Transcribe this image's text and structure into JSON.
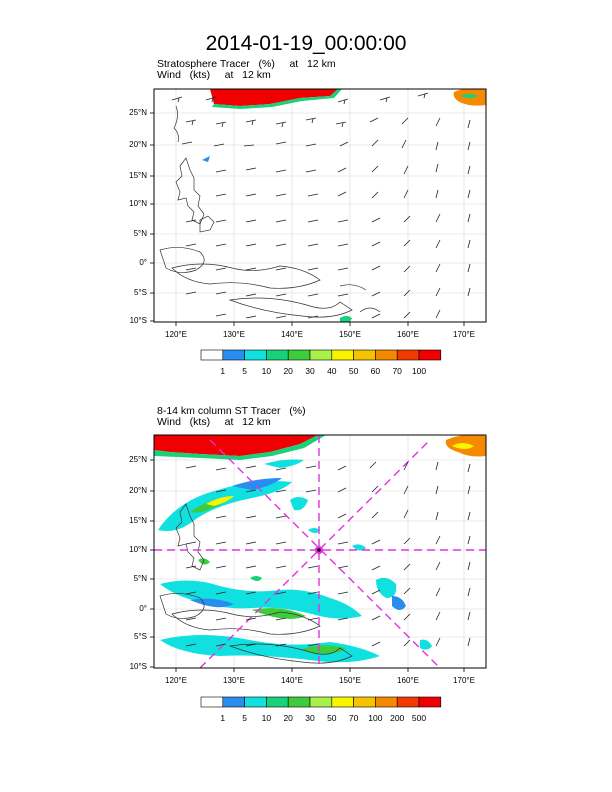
{
  "title": "2014-01-19_00:00:00",
  "panels": [
    {
      "subtitle_line1": "Stratosphere Tracer   (%)     at   12 km",
      "subtitle_line2": "Wind   (kts)     at   12 km",
      "lat_ticks": [
        "25°N",
        "20°N",
        "15°N",
        "10°N",
        "5°N",
        "0°",
        "5°S",
        "10°S"
      ],
      "lon_ticks": [
        "120°E",
        "130°E",
        "140°E",
        "150°E",
        "160°E",
        "170°E"
      ],
      "legend_labels": [
        "1",
        "5",
        "10",
        "20",
        "30",
        "40",
        "50",
        "60",
        "70",
        "100"
      ],
      "legend_colors": [
        "#ffffff",
        "#2b8cf0",
        "#11e0e0",
        "#19d17a",
        "#3ecc3e",
        "#aaf04a",
        "#f8f400",
        "#f7c200",
        "#f58a00",
        "#f03a00",
        "#f00000"
      ]
    },
    {
      "subtitle_line1": "8-14 km column ST Tracer   (%)",
      "subtitle_line2": "Wind   (kts)     at   12 km",
      "lat_ticks": [
        "25°N",
        "20°N",
        "15°N",
        "10°N",
        "5°N",
        "0°",
        "5°S",
        "10°S"
      ],
      "lon_ticks": [
        "120°E",
        "130°E",
        "140°E",
        "150°E",
        "160°E",
        "170°E"
      ],
      "legend_labels": [
        "1",
        "5",
        "10",
        "20",
        "30",
        "50",
        "70",
        "100",
        "200",
        "500"
      ],
      "legend_colors": [
        "#ffffff",
        "#2b8cf0",
        "#11e0e0",
        "#19d17a",
        "#3ecc3e",
        "#aaf04a",
        "#f8f400",
        "#f7c200",
        "#f58a00",
        "#f03a00",
        "#f00000"
      ]
    }
  ],
  "marker": {
    "lon": 145,
    "lat": 10,
    "color": "#e033e0"
  }
}
